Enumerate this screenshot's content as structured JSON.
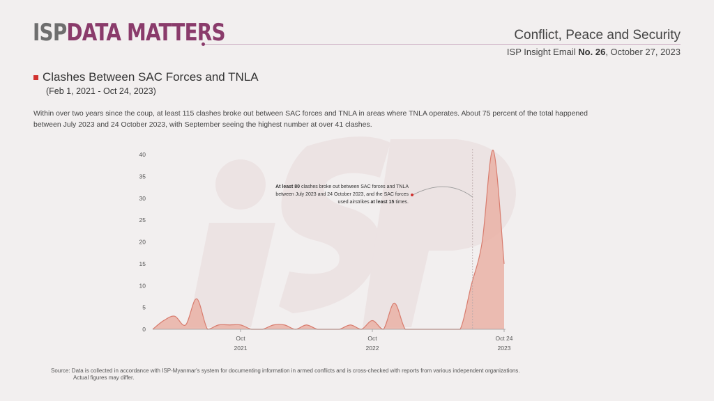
{
  "header": {
    "logo_isp": "ISP",
    "logo_data_matters": "DATA MATTERS",
    "section": "Conflict, Peace and Security",
    "insight_prefix": "ISP Insight Email ",
    "insight_number": "No. 26",
    "insight_date": ", October 27, 2023"
  },
  "title": "Clashes Between SAC Forces and TNLA",
  "subtitle": "(Feb 1, 2021 - Oct 24, 2023)",
  "description": "Within over two years since the coup, at least 115 clashes broke out between SAC forces and TNLA in areas where TNLA operates. About 75 percent of the total happened between July 2023 and 24 October 2023, with September seeing the highest number at over 41 clashes.",
  "annotation": {
    "lines": [
      [
        {
          "t": "At least 80",
          "b": true
        },
        {
          "t": " clashes broke out between SAC forces and TNLA",
          "b": false
        }
      ],
      [
        {
          "t": "between July 2023 and 24 October 2023, and the SAC forces",
          "b": false
        }
      ],
      [
        {
          "t": "used airstrikes ",
          "b": false
        },
        {
          "t": "at least 15",
          "b": true
        },
        {
          "t": " times.",
          "b": false
        }
      ]
    ]
  },
  "source": {
    "line1": "Source: Data is collected in accordance with ISP-Myanmar's system for documenting information in armed conflicts and is cross-checked with reports from various independent organizations.",
    "line2": "Actual figures may differ."
  },
  "colors": {
    "fill": "#eab1a6",
    "stroke": "#d87c6e",
    "accent": "#8a3b6b",
    "bullet": "#d1312f"
  },
  "chart_data": {
    "type": "area",
    "x": [
      "2021-02",
      "2021-03",
      "2021-04",
      "2021-05",
      "2021-06",
      "2021-07",
      "2021-08",
      "2021-09",
      "2021-10",
      "2021-11",
      "2021-12",
      "2022-01",
      "2022-02",
      "2022-03",
      "2022-04",
      "2022-05",
      "2022-06",
      "2022-07",
      "2022-08",
      "2022-09",
      "2022-10",
      "2022-11",
      "2022-12",
      "2023-01",
      "2023-02",
      "2023-03",
      "2023-04",
      "2023-05",
      "2023-06",
      "2023-07",
      "2023-08",
      "2023-09",
      "2023-10"
    ],
    "values": [
      0,
      2,
      3,
      1,
      7,
      0,
      1,
      1,
      1,
      0,
      0,
      1,
      1,
      0,
      1,
      0,
      0,
      0,
      1,
      0,
      2,
      0,
      6,
      0,
      0,
      0,
      0,
      0,
      0,
      10,
      20,
      41,
      15
    ],
    "ylim": [
      0,
      40
    ],
    "yticks": [
      0,
      5,
      10,
      15,
      20,
      25,
      30,
      35,
      40
    ],
    "xticks": [
      {
        "x": "2021-10",
        "label": "Oct",
        "sub": "2021"
      },
      {
        "x": "2022-10",
        "label": "Oct",
        "sub": "2022"
      },
      {
        "x": "2023-10",
        "label": "Oct 24",
        "sub": "2023"
      }
    ],
    "marker_line": "2023-07",
    "grid": false
  }
}
